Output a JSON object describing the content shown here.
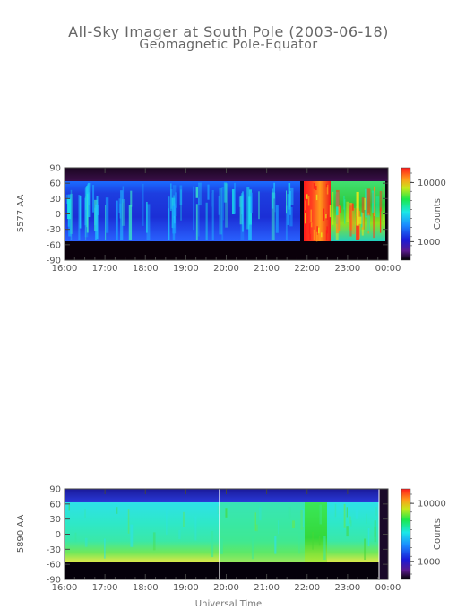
{
  "title": "All-Sky Imager at South Pole (2003-06-18)",
  "subtitle": "Geomagnetic Pole-Equator",
  "x_axis_title": "Universal Time",
  "colorbar_label": "Counts",
  "chart_data": [
    {
      "type": "heatmap",
      "ylabel": "5577 AA",
      "x": [
        "16:00",
        "17:00",
        "18:00",
        "19:00",
        "20:00",
        "21:00",
        "22:00",
        "23:00",
        "00:00"
      ],
      "y_ticks": [
        90,
        60,
        30,
        0,
        -30,
        -60,
        -90
      ],
      "ylim": [
        -90,
        90
      ],
      "colorbar_ticks": [
        "10000",
        "1000"
      ],
      "colorbar_scale": "log",
      "valid_latitude_range": [
        -57,
        60
      ],
      "segments": [
        {
          "start": "16:00",
          "end": "21:54",
          "level": "low",
          "note_color": "#1c2cd8"
        },
        {
          "start": "21:54",
          "end": "22:30",
          "level": "high",
          "note_color": "#e82018"
        },
        {
          "start": "22:30",
          "end": "23:50",
          "level": "medium",
          "note_color": "#3ccf3c"
        }
      ]
    },
    {
      "type": "heatmap",
      "ylabel": "5890 AA",
      "x": [
        "16:00",
        "17:00",
        "18:00",
        "19:00",
        "20:00",
        "21:00",
        "22:00",
        "23:00",
        "00:00"
      ],
      "y_ticks": [
        90,
        60,
        30,
        0,
        -30,
        -60,
        -90
      ],
      "ylim": [
        -90,
        90
      ],
      "colorbar_ticks": [
        "10000",
        "1000"
      ],
      "colorbar_scale": "log",
      "valid_latitude_range": [
        -57,
        60
      ],
      "segments": [
        {
          "start": "16:00",
          "end": "21:45",
          "level": "medium-low",
          "note_color": "#36e6b4"
        },
        {
          "start": "21:45",
          "end": "22:15",
          "level": "medium",
          "note_color": "#33d63a"
        },
        {
          "start": "22:15",
          "end": "23:50",
          "level": "medium-low",
          "note_color": "#40e0a0"
        }
      ]
    }
  ]
}
